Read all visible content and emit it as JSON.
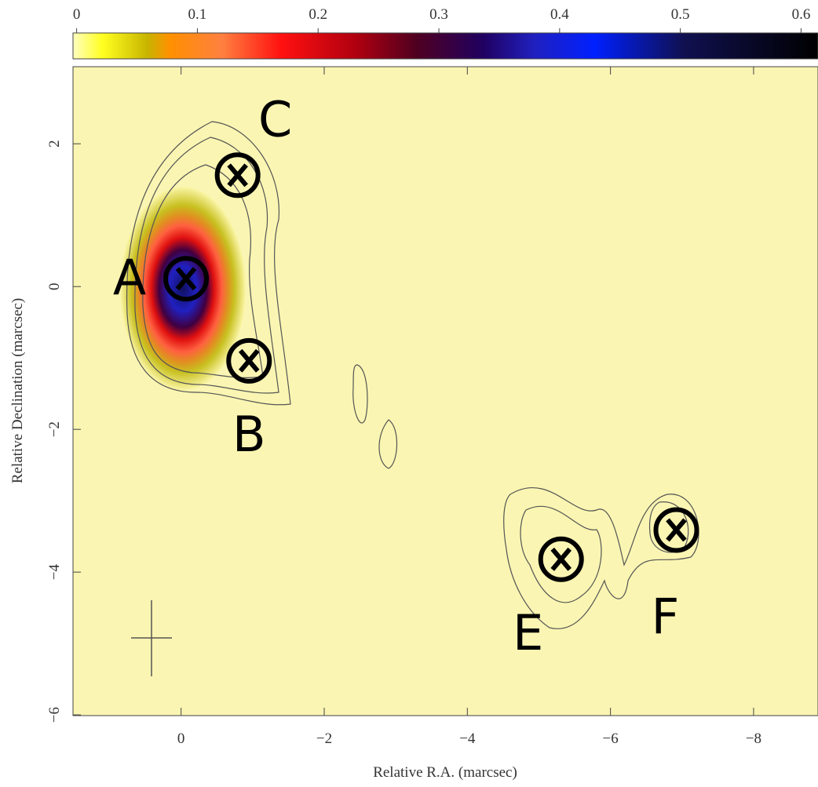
{
  "chart_data": {
    "type": "image",
    "x_label": "Relative R.A. (marcsec)",
    "y_label": "Relative Declination (marcsec)",
    "xlim": [
      1.51,
      -8.9
    ],
    "ylim": [
      -6.01,
      3.08
    ],
    "xticks": [
      0,
      {
        "value": -2,
        "label": "−2"
      },
      {
        "value": -4,
        "label": "−4"
      },
      {
        "value": -6,
        "label": "−6"
      },
      {
        "value": -8,
        "label": "−8"
      }
    ],
    "yticks": [
      {
        "value": -6,
        "label": "−6"
      },
      {
        "value": -4,
        "label": "−4"
      },
      {
        "value": -2,
        "label": "−2"
      },
      0,
      2
    ],
    "colorbar": {
      "lim": [
        -0.003,
        0.614
      ],
      "ticks": [
        0,
        0.1,
        0.2,
        0.3,
        0.4,
        0.5,
        0.6
      ]
    },
    "components": [
      {
        "label": "A",
        "x": -0.07,
        "y": 0.11
      },
      {
        "label": "B",
        "x": -0.95,
        "y": -1.04
      },
      {
        "label": "C",
        "x": -0.79,
        "y": 1.56
      },
      {
        "label": "E",
        "x": -5.31,
        "y": -3.82
      },
      {
        "label": "F",
        "x": -6.92,
        "y": -3.41
      }
    ]
  }
}
